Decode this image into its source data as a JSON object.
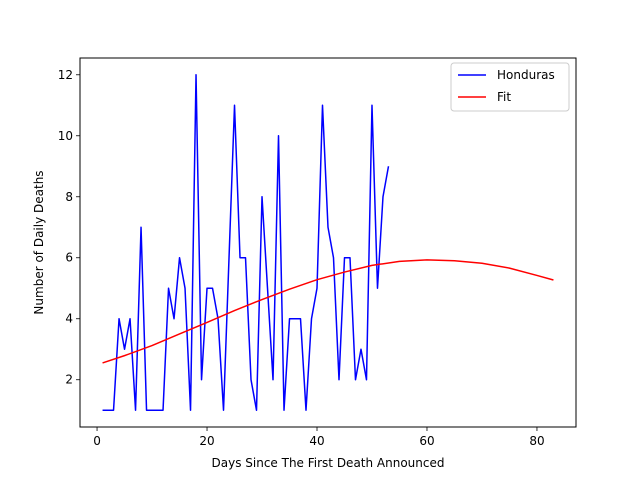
{
  "chart_data": {
    "type": "line",
    "title": "",
    "xlabel": "Days Since The First Death Announced",
    "ylabel": "Number of Daily Deaths",
    "xlim": [
      -3.1,
      87.1
    ],
    "ylim": [
      0.45,
      12.55
    ],
    "xticks": [
      0,
      20,
      40,
      60,
      80
    ],
    "yticks": [
      2,
      4,
      6,
      8,
      10,
      12
    ],
    "grid": false,
    "legend_position": "top-right",
    "series": [
      {
        "name": "Honduras",
        "color": "#0000ff",
        "x": [
          1,
          2,
          3,
          4,
          5,
          6,
          7,
          8,
          9,
          10,
          11,
          12,
          13,
          14,
          15,
          16,
          17,
          18,
          19,
          20,
          21,
          22,
          23,
          24,
          25,
          26,
          27,
          28,
          29,
          30,
          31,
          32,
          33,
          34,
          35,
          36,
          37,
          38,
          39,
          40,
          41,
          42,
          43,
          44,
          45,
          46,
          47,
          48,
          49,
          50,
          51,
          52,
          53
        ],
        "y": [
          1,
          1,
          1,
          4,
          3,
          4,
          1,
          7,
          1,
          1,
          1,
          1,
          5,
          4,
          6,
          5,
          1,
          12,
          2,
          5,
          5,
          4,
          1,
          6,
          11,
          6,
          6,
          2,
          1,
          8,
          5,
          2,
          10,
          1,
          4,
          4,
          4,
          1,
          4,
          5,
          11,
          7,
          6,
          2,
          6,
          6,
          2,
          3,
          2,
          11,
          5,
          8,
          9
        ]
      },
      {
        "name": "Fit",
        "color": "#ff0000",
        "x": [
          1,
          5,
          10,
          15,
          20,
          25,
          30,
          35,
          40,
          45,
          50,
          55,
          60,
          65,
          70,
          75,
          80,
          83
        ],
        "y": [
          2.55,
          2.79,
          3.12,
          3.5,
          3.88,
          4.27,
          4.63,
          4.97,
          5.28,
          5.53,
          5.75,
          5.88,
          5.93,
          5.9,
          5.82,
          5.66,
          5.42,
          5.27
        ]
      }
    ]
  }
}
